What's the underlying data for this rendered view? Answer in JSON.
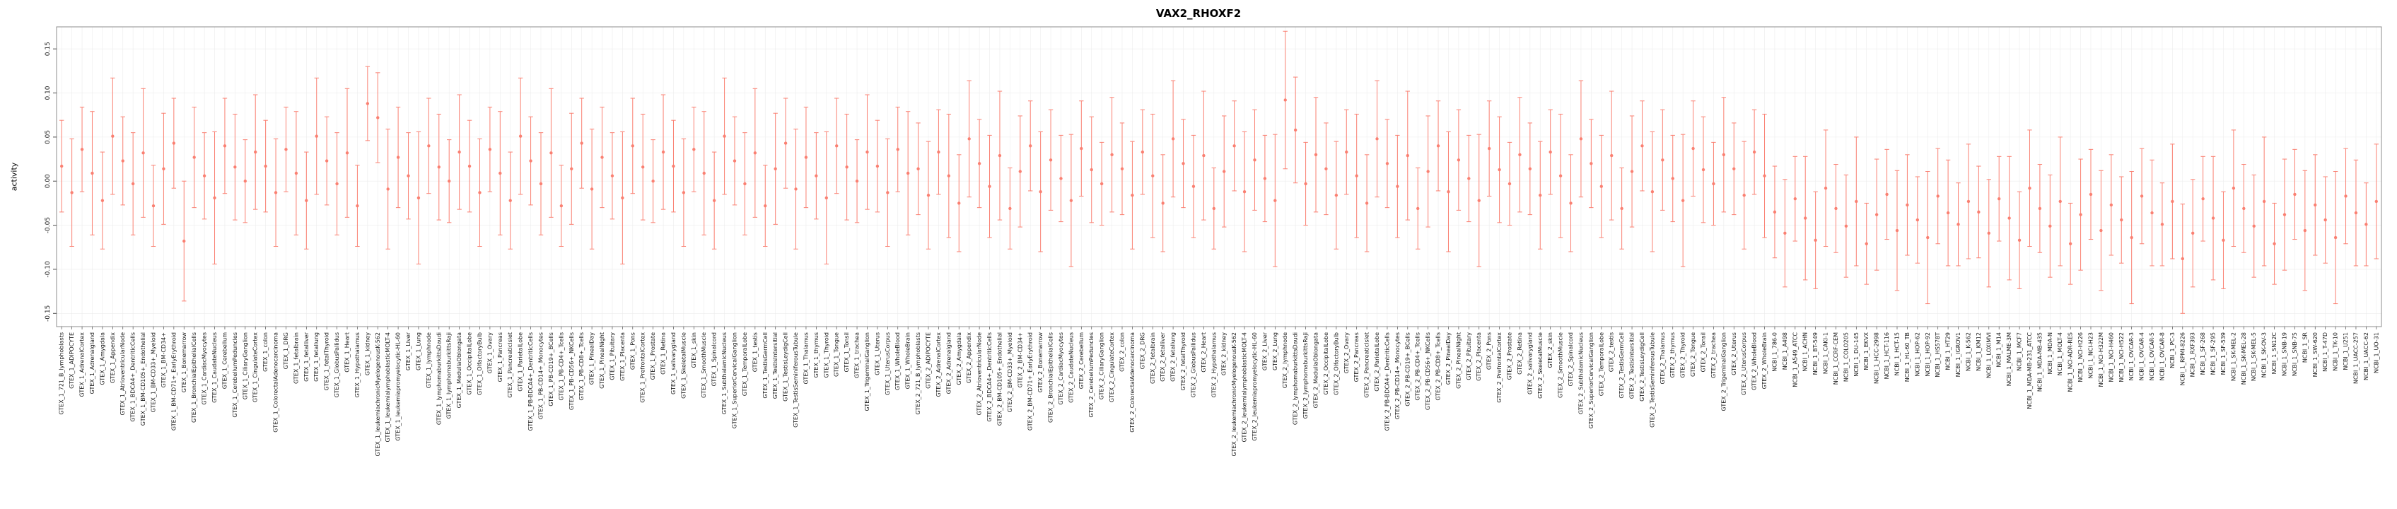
{
  "chart_data": {
    "type": "scatter",
    "title": "VAX2_RHOXF2",
    "xlabel": "",
    "ylabel": "activity",
    "ylim": [
      -0.165,
      0.175
    ],
    "ytick_values": [
      -0.15,
      -0.1,
      -0.05,
      0.0,
      0.05,
      0.1,
      0.15
    ],
    "ytick_labels": [
      "-0.15",
      "-0.10",
      "-0.05",
      "0.00",
      "0.05",
      "0.10",
      "0.15"
    ],
    "grid": true,
    "legend_position": "none",
    "point_color": "#FA8072",
    "error_bar_color": "#FA8072",
    "grid_color": "#ececec",
    "frame_color": "#8c8c8c",
    "tick_color": "#4d4d4d",
    "label_color": "#1a1a1a",
    "categories": [
      "GTEX_1_721_B_lymphoblasts",
      "GTEX_1_ADIPOCYTE",
      "GTEX_1_AdrenalCortex",
      "GTEX_1_Adrenalgland",
      "GTEX_1_Amygdala",
      "GTEX_1_Appendix",
      "GTEX_1_AtrioventricularNode",
      "GTEX_1_BDCA4+_DentriticCells",
      "GTEX_1_BM-CD105+_Endothelial",
      "GTEX_1_BM-CD33+_Myeloid",
      "GTEX_1_BM-CD34+",
      "GTEX_1_BM-CD71+_EarlyErythroid",
      "GTEX_1_Bonemarrow",
      "GTEX_1_BronchialEpithelialCells",
      "GTEX_1_CardiacMyocytes",
      "GTEX_1_CaudateNucleus",
      "GTEX_1_Cerebellum",
      "GTEX_1_CerebellumPeduncles",
      "GTEX_1_CiliaryGanglion",
      "GTEX_1_CingulateCortex",
      "GTEX_1_colon",
      "GTEX_1_ColorectalAdenocarcinoma",
      "GTEX_1_DRG",
      "GTEX_1_fetalbrain",
      "GTEX_1_fetalliver",
      "GTEX_1_fetallung",
      "GTEX_1_fetalThyroid",
      "GTEX_1_GlobusPallidus",
      "GTEX_1_Heart",
      "GTEX_1_Hypothalamus",
      "GTEX_1_kidney",
      "GTEX_1_leukemiachronicMyelogenousK-562",
      "GTEX_1_leukemialymphoblasticMOLT-4",
      "GTEX_1_leukemiapromyelocytic-HL-60",
      "GTEX_1_Liver",
      "GTEX_1_Lung",
      "GTEX_1_lymphnode",
      "GTEX_1_lymphomaburkittsDaudi",
      "GTEX_1_lymphomaburkittsRaji",
      "GTEX_1_MedullaOblongata",
      "GTEX_1_OccipitalLobe",
      "GTEX_1_OlfactoryBulb",
      "GTEX_1_Ovary",
      "GTEX_1_Pancreas",
      "GTEX_1_PancreaticIslet",
      "GTEX_1_ParietalLobe",
      "GTEX_1_PB-BDCA4+_DentriticCells",
      "GTEX_1_PB-CD14+_Monocytes",
      "GTEX_1_PB-CD19+_BCells",
      "GTEX_1_PB-CD4+_Tcells",
      "GTEX_1_PB-CD56+_NKCells",
      "GTEX_1_PB-CD8+_Tcells",
      "GTEX_1_PinealDay",
      "GTEX_1_PinealNight",
      "GTEX_1_Pituitary",
      "GTEX_1_Placenta",
      "GTEX_1_Pons",
      "GTEX_1_PrefrontalCortex",
      "GTEX_1_Prostate",
      "GTEX_1_Retina",
      "GTEX_1_salivarygland",
      "GTEX_1_SkeletalMuscle",
      "GTEX_1_skin",
      "GTEX_1_SmoothMuscle",
      "GTEX_1_Spinalcord",
      "GTEX_1_SubthalamicNucleus",
      "GTEX_1_SuperiorCervicalGanglion",
      "GTEX_1_TemporalLobe",
      "GTEX_1_testis",
      "GTEX_1_TestisGermCell",
      "GTEX_1_TestisIntersitial",
      "GTEX_1_TestisLeydigCell",
      "GTEX_1_TestisSeminiferousTubule",
      "GTEX_1_Thalamus",
      "GTEX_1_thymus",
      "GTEX_1_Thyroid",
      "GTEX_1_Tongue",
      "GTEX_1_Tonsil",
      "GTEX_1_trachea",
      "GTEX_1_TrigeminalGanglion",
      "GTEX_1_Uterus",
      "GTEX_1_UterusCorpus",
      "GTEX_1_WholeBlood",
      "GTEX_1_WholeBrain",
      "GTEX_2_721_B_lymphoblasts",
      "GTEX_2_ADIPOCYTE",
      "GTEX_2_AdrenalCortex",
      "GTEX_2_Adrenalgland",
      "GTEX_2_Amygdala",
      "GTEX_2_Appendix",
      "GTEX_2_AtrioventricularNode",
      "GTEX_2_BDCA4+_DentriticCells",
      "GTEX_2_BM-CD105+_Endothelial",
      "GTEX_2_BM-CD33+_Myeloid",
      "GTEX_2_BM-CD34+",
      "GTEX_2_BM-CD71+_EarlyErythroid",
      "GTEX_2_Bonemarrow",
      "GTEX_2_BronchialEpithelialCells",
      "GTEX_2_CardiacMyocytes",
      "GTEX_2_CaudateNucleus",
      "GTEX_2_Cerebellum",
      "GTEX_2_CerebellumPeduncles",
      "GTEX_2_CiliaryGanglion",
      "GTEX_2_CingulateCortex",
      "GTEX_2_colon",
      "GTEX_2_ColorectalAdenocarcinoma",
      "GTEX_2_DRG",
      "GTEX_2_fetalbrain",
      "GTEX_2_fetalliver",
      "GTEX_2_fetallung",
      "GTEX_2_fetalThyroid",
      "GTEX_2_GlobusPallidus",
      "GTEX_2_Heart",
      "GTEX_2_Hypothalamus",
      "GTEX_2_kidney",
      "GTEX_2_leukemiachronicMyelogenousK-562",
      "GTEX_2_leukemialymphoblasticMOLT-4",
      "GTEX_2_leukemiapromyelocytic-HL-60",
      "GTEX_2_Liver",
      "GTEX_2_Lung",
      "GTEX_2_lymphnode",
      "GTEX_2_lymphomaburkittsDaudi",
      "GTEX_2_lymphomaburkittsRaji",
      "GTEX_2_MedullaOblongata",
      "GTEX_2_OccipitalLobe",
      "GTEX_2_OlfactoryBulb",
      "GTEX_2_Ovary",
      "GTEX_2_Pancreas",
      "GTEX_2_PancreaticIslet",
      "GTEX_2_ParietalLobe",
      "GTEX_2_PB-BDCA4+_DentriticCells",
      "GTEX_2_PB-CD14+_Monocytes",
      "GTEX_2_PB-CD19+_BCells",
      "GTEX_2_PB-CD4+_Tcells",
      "GTEX_2_PB-CD56+_NKCells",
      "GTEX_2_PB-CD8+_Tcells",
      "GTEX_2_PinealDay",
      "GTEX_2_PinealNight",
      "GTEX_2_Pituitary",
      "GTEX_2_Placenta",
      "GTEX_2_Pons",
      "GTEX_2_PrefrontalCortex",
      "GTEX_2_Prostate",
      "GTEX_2_Retina",
      "GTEX_2_salivarygland",
      "GTEX_2_SkeletalMuscle",
      "GTEX_2_skin",
      "GTEX_2_SmoothMuscle",
      "GTEX_2_Spinalcord",
      "GTEX_2_SubthalamicNucleus",
      "GTEX_2_SuperiorCervicalGanglion",
      "GTEX_2_TemporalLobe",
      "GTEX_2_testis",
      "GTEX_2_TestisGermCell",
      "GTEX_2_TestisIntersitial",
      "GTEX_2_TestisLeydigCell",
      "GTEX_2_TestisSeminiferousTubule",
      "GTEX_2_Thalamus",
      "GTEX_2_thymus",
      "GTEX_2_Thyroid",
      "GTEX_2_Tongue",
      "GTEX_2_Tonsil",
      "GTEX_2_trachea",
      "GTEX_2_TrigeminalGanglion",
      "GTEX_2_Uterus",
      "GTEX_2_UterusCorpus",
      "GTEX_2_WholeBlood",
      "GTEX_2_WholeBrain",
      "NCBI_1_786-0",
      "NCBI_1_A498",
      "NCBI_1_A549_ATCC",
      "NCBI_1_ACHN",
      "NCBI_1_BT-549",
      "NCBI_1_CAKI-1",
      "NCBI_1_CCRF-CEM",
      "NCBI_1_COLO205",
      "NCBI_1_DU-145",
      "NCBI_1_EKVX",
      "NCBI_1_HCC-2998",
      "NCBI_1_HCT-116",
      "NCBI_1_HCT-15",
      "NCBI_1_HL-60_TB",
      "NCBI_1_HOP-62",
      "NCBI_1_HOP-92",
      "NCBI_1_HS578T",
      "NCBI_1_HT29",
      "NCBI_1_IGROV1",
      "NCBI_1_K-562",
      "NCBI_1_KM12",
      "NCBI_1_LOXIMVI",
      "NCBI_1_M14",
      "NCBI_1_MALME-3M",
      "NCBI_1_MCF7",
      "NCBI_1_MDA-MB-231_ATCC",
      "NCBI_1_MDA-MB-435",
      "NCBI_1_MDA-N",
      "NCBI_1_MOLT-4",
      "NCBI_1_NCI-ADR-RES",
      "NCBI_1_NCI-H226",
      "NCBI_1_NCI-H23",
      "NCBI_1_NCI-H322M",
      "NCBI_1_NCI-H460",
      "NCBI_1_NCI-H522",
      "NCBI_1_OVCAR-3",
      "NCBI_1_OVCAR-4",
      "NCBI_1_OVCAR-5",
      "NCBI_1_OVCAR-8",
      "NCBI_1_PC-3",
      "NCBI_1_RPMI-8226",
      "NCBI_1_RXF393",
      "NCBI_1_SF-268",
      "NCBI_1_SF-295",
      "NCBI_1_SF-539",
      "NCBI_1_SK-MEL-2",
      "NCBI_1_SK-MEL-28",
      "NCBI_1_SK-MEL-5",
      "NCBI_1_SK-OV-3",
      "NCBI_1_SN12C",
      "NCBI_1_SNB-19",
      "NCBI_1_SNB-75",
      "NCBI_1_SR",
      "NCBI_1_SW-620",
      "NCBI_1_T-47D",
      "NCBI_1_TK-10",
      "NCBI_1_U251",
      "NCBI_1_UACC-257",
      "NCBI_1_UACC-62",
      "NCBI_1_UO-31"
    ],
    "values": [
      0.017,
      -0.013,
      0.036,
      0.009,
      -0.022,
      0.051,
      0.023,
      -0.003,
      0.032,
      -0.028,
      0.014,
      0.043,
      -0.068,
      0.027,
      0.006,
      -0.019,
      0.04,
      0.016,
      0.0,
      0.033,
      0.017,
      -0.013,
      0.036,
      0.009,
      -0.022,
      0.051,
      0.023,
      -0.003,
      0.032,
      -0.028,
      0.088,
      0.072,
      -0.009,
      0.027,
      0.006,
      -0.019,
      0.04,
      0.016,
      0.0,
      0.033,
      0.017,
      -0.013,
      0.036,
      0.009,
      -0.022,
      0.051,
      0.023,
      -0.003,
      0.032,
      -0.028,
      0.014,
      0.043,
      -0.009,
      0.027,
      0.006,
      -0.019,
      0.04,
      0.016,
      0.0,
      0.033,
      0.017,
      -0.013,
      0.036,
      0.009,
      -0.022,
      0.051,
      0.023,
      -0.003,
      0.032,
      -0.028,
      0.014,
      0.043,
      -0.009,
      0.027,
      0.006,
      -0.019,
      0.04,
      0.016,
      0.0,
      0.033,
      0.017,
      -0.013,
      0.036,
      0.009,
      0.014,
      -0.016,
      0.033,
      0.006,
      -0.025,
      0.048,
      0.02,
      -0.006,
      0.029,
      -0.031,
      0.011,
      0.04,
      -0.012,
      0.024,
      0.003,
      -0.022,
      0.037,
      0.013,
      -0.003,
      0.03,
      0.014,
      -0.016,
      0.033,
      0.006,
      -0.025,
      0.048,
      0.02,
      -0.006,
      0.029,
      -0.031,
      0.011,
      0.04,
      -0.012,
      0.024,
      0.003,
      -0.022,
      0.092,
      0.058,
      -0.003,
      0.03,
      0.014,
      -0.016,
      0.033,
      0.006,
      -0.025,
      0.048,
      0.02,
      -0.006,
      0.029,
      -0.031,
      0.011,
      0.04,
      -0.012,
      0.024,
      0.003,
      -0.022,
      0.037,
      0.013,
      -0.003,
      0.03,
      0.014,
      -0.016,
      0.033,
      0.006,
      -0.025,
      0.048,
      0.02,
      -0.006,
      0.029,
      -0.031,
      0.011,
      0.04,
      -0.012,
      0.024,
      0.003,
      -0.022,
      0.037,
      0.013,
      -0.003,
      0.03,
      0.014,
      -0.016,
      0.033,
      0.006,
      -0.035,
      -0.059,
      -0.02,
      -0.042,
      -0.067,
      -0.008,
      -0.031,
      -0.051,
      -0.023,
      -0.071,
      -0.038,
      -0.015,
      -0.056,
      -0.027,
      -0.044,
      -0.064,
      -0.017,
      -0.036,
      -0.049,
      -0.023,
      -0.035,
      -0.059,
      -0.02,
      -0.042,
      -0.067,
      -0.008,
      -0.031,
      -0.051,
      -0.023,
      -0.071,
      -0.038,
      -0.015,
      -0.056,
      -0.027,
      -0.044,
      -0.064,
      -0.017,
      -0.036,
      -0.049,
      -0.023,
      -0.088,
      -0.059,
      -0.02,
      -0.042,
      -0.067,
      -0.008,
      -0.031,
      -0.051,
      -0.023,
      -0.071,
      -0.038,
      -0.015,
      -0.056,
      -0.027,
      -0.044,
      -0.064,
      -0.017,
      -0.036,
      -0.049,
      -0.023
    ],
    "errors": [
      0.052,
      0.061,
      0.048,
      0.07,
      0.055,
      0.066,
      0.05,
      0.058,
      0.073,
      0.046,
      0.063,
      0.051,
      0.068,
      0.057,
      0.049,
      0.075,
      0.054,
      0.06,
      0.047,
      0.065,
      0.052,
      0.061,
      0.048,
      0.07,
      0.055,
      0.066,
      0.05,
      0.058,
      0.073,
      0.046,
      0.042,
      0.051,
      0.068,
      0.057,
      0.049,
      0.075,
      0.054,
      0.06,
      0.047,
      0.065,
      0.052,
      0.061,
      0.048,
      0.07,
      0.055,
      0.066,
      0.05,
      0.058,
      0.073,
      0.046,
      0.063,
      0.051,
      0.068,
      0.057,
      0.049,
      0.075,
      0.054,
      0.06,
      0.047,
      0.065,
      0.052,
      0.061,
      0.048,
      0.07,
      0.055,
      0.066,
      0.05,
      0.058,
      0.073,
      0.046,
      0.063,
      0.051,
      0.068,
      0.057,
      0.049,
      0.075,
      0.054,
      0.06,
      0.047,
      0.065,
      0.052,
      0.061,
      0.048,
      0.07,
      0.052,
      0.061,
      0.048,
      0.07,
      0.055,
      0.066,
      0.05,
      0.058,
      0.073,
      0.046,
      0.063,
      0.051,
      0.068,
      0.057,
      0.049,
      0.075,
      0.054,
      0.06,
      0.047,
      0.065,
      0.052,
      0.061,
      0.048,
      0.07,
      0.055,
      0.066,
      0.05,
      0.058,
      0.073,
      0.046,
      0.063,
      0.051,
      0.068,
      0.057,
      0.049,
      0.075,
      0.078,
      0.06,
      0.047,
      0.065,
      0.052,
      0.061,
      0.048,
      0.07,
      0.055,
      0.066,
      0.05,
      0.058,
      0.073,
      0.046,
      0.063,
      0.051,
      0.068,
      0.057,
      0.049,
      0.075,
      0.054,
      0.06,
      0.047,
      0.065,
      0.052,
      0.061,
      0.048,
      0.07,
      0.055,
      0.066,
      0.05,
      0.058,
      0.073,
      0.046,
      0.063,
      0.051,
      0.068,
      0.057,
      0.049,
      0.075,
      0.054,
      0.06,
      0.047,
      0.065,
      0.052,
      0.061,
      0.048,
      0.07,
      0.052,
      0.061,
      0.048,
      0.07,
      0.055,
      0.066,
      0.05,
      0.058,
      0.073,
      0.046,
      0.063,
      0.051,
      0.068,
      0.057,
      0.049,
      0.075,
      0.054,
      0.06,
      0.047,
      0.065,
      0.052,
      0.061,
      0.048,
      0.07,
      0.055,
      0.066,
      0.05,
      0.058,
      0.073,
      0.046,
      0.063,
      0.051,
      0.068,
      0.057,
      0.049,
      0.075,
      0.054,
      0.06,
      0.047,
      0.065,
      0.062,
      0.061,
      0.048,
      0.07,
      0.055,
      0.066,
      0.05,
      0.058,
      0.073,
      0.046,
      0.063,
      0.051,
      0.068,
      0.057,
      0.049,
      0.075,
      0.054,
      0.06,
      0.047,
      0.065
    ]
  }
}
